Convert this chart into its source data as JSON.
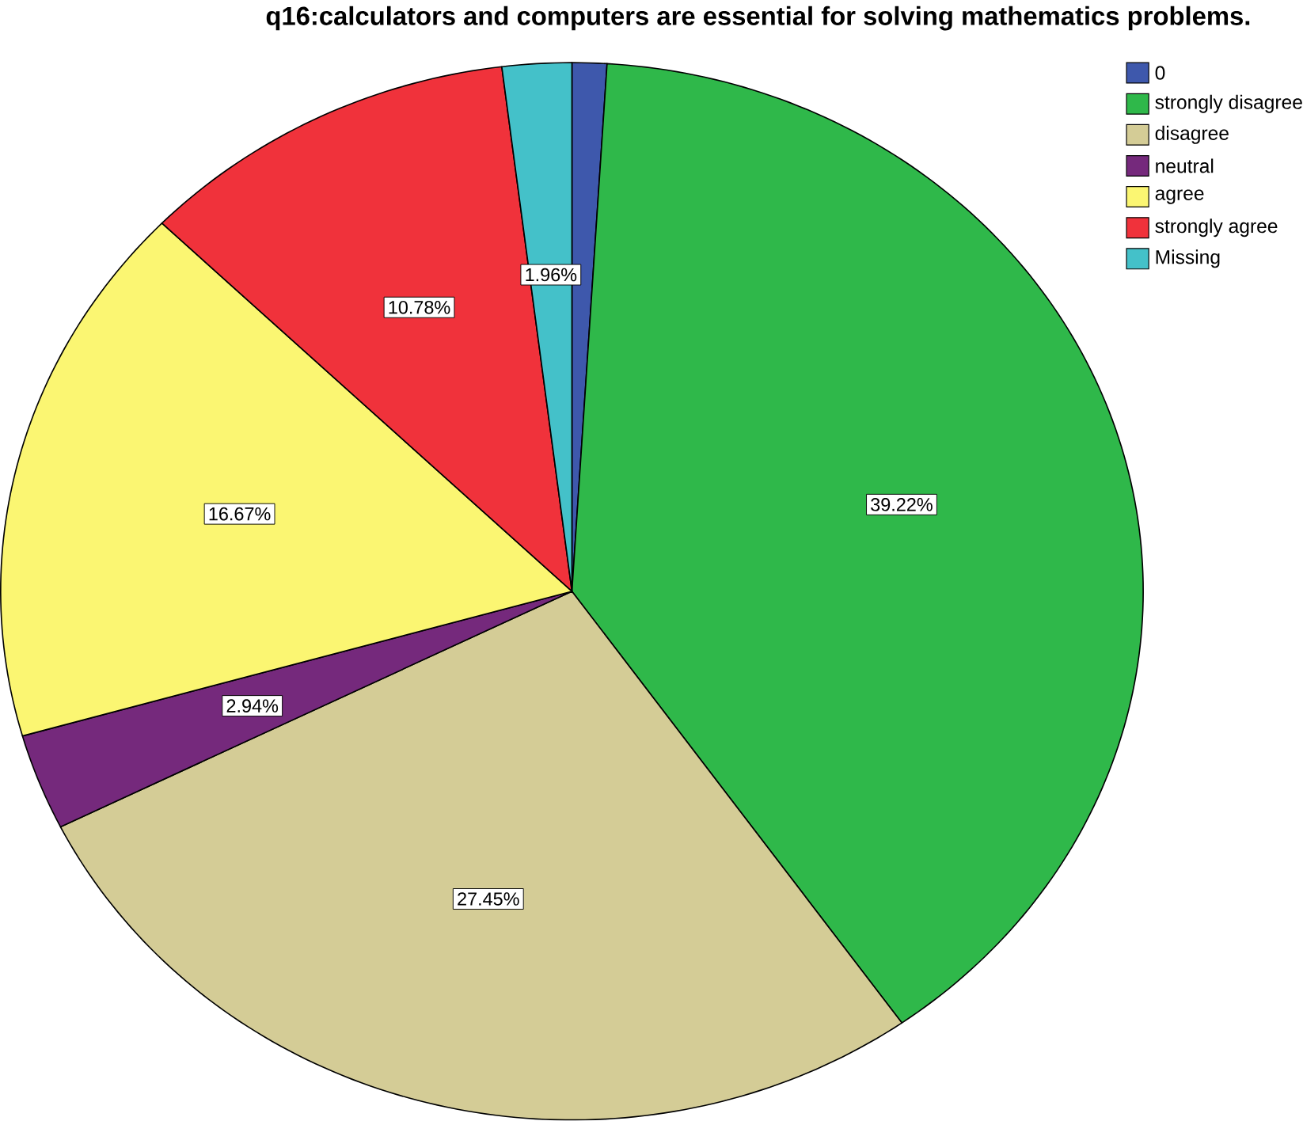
{
  "chart_data": {
    "type": "pie",
    "title": "q16:calculators and computers are essential for solving mathematics problems.",
    "categories": [
      "0",
      "strongly disagree",
      "disagree",
      "neutral",
      "agree",
      "strongly agree",
      "Missing"
    ],
    "values": [
      0.98,
      39.22,
      27.45,
      2.94,
      16.67,
      10.78,
      1.96
    ],
    "value_labels": [
      null,
      "39.22%",
      "27.45%",
      "2.94%",
      "16.67%",
      "10.78%",
      "1.96%"
    ],
    "colors": [
      "#3e58ac",
      "#2fb84a",
      "#d4cc96",
      "#75297c",
      "#fbf672",
      "#f0323b",
      "#44c1c9"
    ],
    "legend": "top right"
  }
}
